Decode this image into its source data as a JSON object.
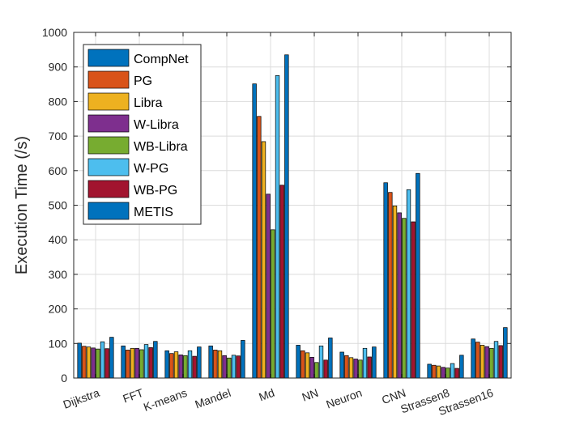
{
  "chart_data": {
    "type": "bar",
    "ylabel": "Execution Time (/s)",
    "xlabel": "",
    "ylim": [
      0,
      1000
    ],
    "yticks": [
      0,
      100,
      200,
      300,
      400,
      500,
      600,
      700,
      800,
      900,
      1000
    ],
    "grid": true,
    "legend_position": "top-left",
    "categories": [
      "Dijkstra",
      "FFT",
      "K-means",
      "Mandel",
      "Md",
      "NN",
      "Neuron",
      "CNN",
      "Strassen8",
      "Strassen16"
    ],
    "series": [
      {
        "name": "CompNet",
        "color": "#0072BD",
        "values": [
          101,
          93,
          79,
          93,
          851,
          95,
          75,
          565,
          40,
          113
        ]
      },
      {
        "name": "PG",
        "color": "#D95319",
        "values": [
          92,
          81,
          71,
          81,
          757,
          79,
          65,
          537,
          37,
          104
        ]
      },
      {
        "name": "Libra",
        "color": "#EDB120",
        "values": [
          90,
          86,
          76,
          79,
          684,
          73,
          59,
          498,
          35,
          95
        ]
      },
      {
        "name": "W-Libra",
        "color": "#7E2F8E",
        "values": [
          87,
          86,
          67,
          65,
          532,
          60,
          55,
          478,
          31,
          91
        ]
      },
      {
        "name": "WB-Libra",
        "color": "#77AC30",
        "values": [
          84,
          82,
          65,
          58,
          429,
          45,
          52,
          462,
          29,
          86
        ]
      },
      {
        "name": "W-PG",
        "color": "#4DBEEE",
        "values": [
          105,
          97,
          79,
          66,
          875,
          93,
          86,
          545,
          42,
          106
        ]
      },
      {
        "name": "WB-PG",
        "color": "#A2142F",
        "values": [
          85,
          88,
          63,
          64,
          558,
          52,
          61,
          452,
          28,
          94
        ]
      },
      {
        "name": "METIS",
        "color": "#0072BD",
        "values": [
          118,
          106,
          90,
          109,
          935,
          116,
          90,
          592,
          66,
          146
        ]
      }
    ]
  }
}
